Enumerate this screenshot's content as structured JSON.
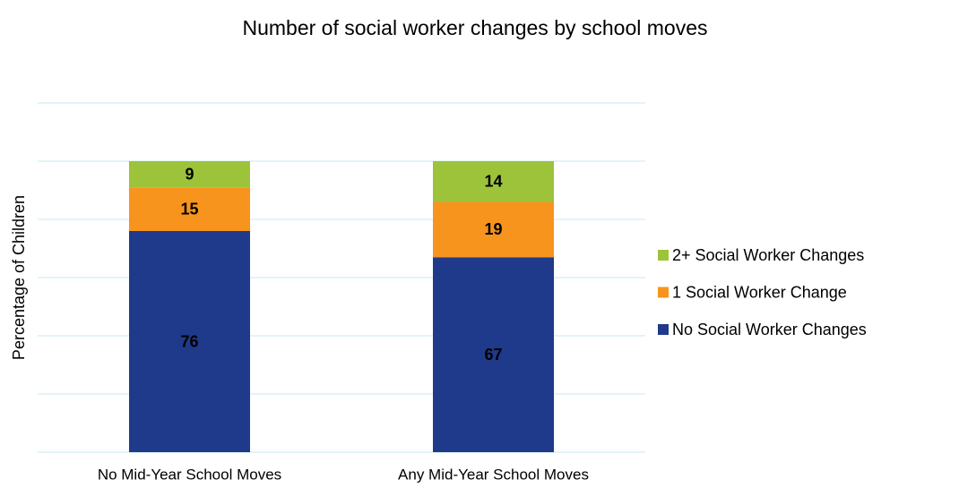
{
  "chart_data": {
    "type": "stacked_bar",
    "title": "Number of social worker changes by school moves",
    "y_label": "Percentage of Children",
    "categories": [
      "No Mid-Year School Moves",
      "Any Mid-Year School Moves"
    ],
    "series": [
      {
        "name": "No Social Worker Changes",
        "color": "#1f3a8a",
        "label_color": "#ffffff",
        "values": [
          76,
          67
        ]
      },
      {
        "name": "1 Social Worker Change",
        "color": "#f7941d",
        "label_color": "#000000",
        "values": [
          15,
          19
        ]
      },
      {
        "name": "2+ Social Worker Changes",
        "color": "#9dc33a",
        "label_color": "#000000",
        "values": [
          9,
          14
        ]
      }
    ],
    "ylim": [
      0,
      120
    ],
    "yticks": [
      0,
      20,
      40,
      60,
      80,
      100,
      120
    ],
    "grid": true,
    "grid_color": "#d9f1f7",
    "legend": "right"
  }
}
